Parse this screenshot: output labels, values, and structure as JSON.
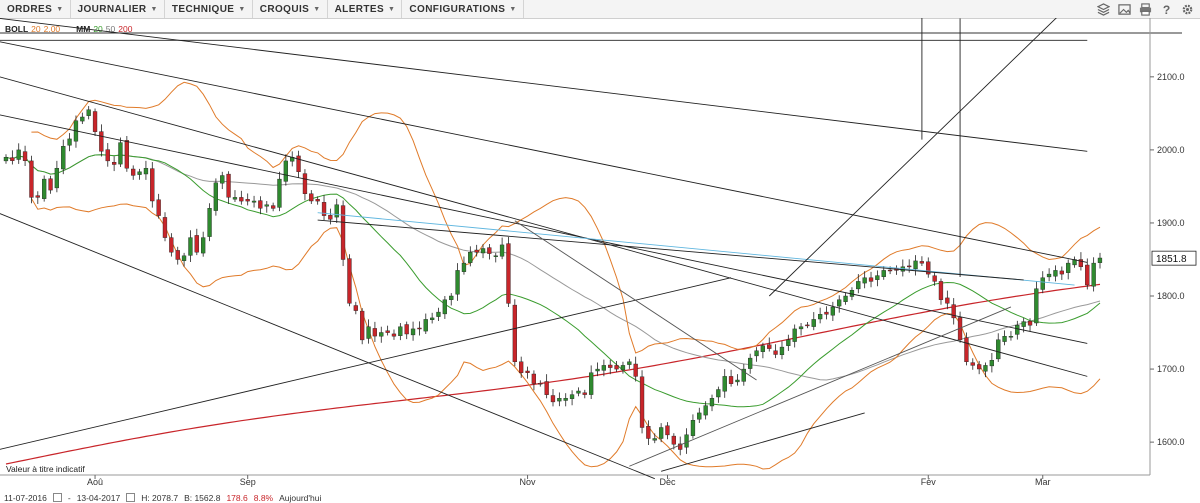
{
  "menu": [
    {
      "label": "ORDRES"
    },
    {
      "label": "JOURNALIER"
    },
    {
      "label": "TECHNIQUE"
    },
    {
      "label": "CROQUIS"
    },
    {
      "label": "ALERTES"
    },
    {
      "label": "CONFIGURATIONS"
    }
  ],
  "toolbar_icons": [
    "layers-icon",
    "image-icon",
    "print-icon",
    "help-icon",
    "settings-icon"
  ],
  "legend": {
    "boll_label": "BOLL",
    "boll_period": "20",
    "boll_dev": "2.00",
    "mm_label": "MM",
    "mm_1": "20",
    "mm_2": "50",
    "mm_3": "200"
  },
  "note": "Valeur à titre indicatif",
  "footer": {
    "from": "11-07-2016",
    "to": "13-04-2017",
    "high": "H: 2078.7",
    "low": "B: 1562.8",
    "change": "178.6",
    "change_pct": "8.8%",
    "today": "Aujourd'hui"
  },
  "colors": {
    "up": "#2f8a2f",
    "down": "#c8252a",
    "boll": "#e07b2a",
    "mm20": "#3a9c2e",
    "mm50": "#999999",
    "mm200": "#c8252a",
    "cyan": "#5fb6df"
  },
  "chart_data": {
    "type": "candlestick",
    "x_tick_labels": [
      "Aoû",
      "Sep",
      "Nov",
      "Déc",
      "Fév",
      "Mar"
    ],
    "y_ticks": [
      1600,
      1700,
      1800,
      1900,
      2000,
      2100
    ],
    "y_tick_labels": [
      "1600.0",
      "1700.0",
      "1800.0",
      "1900.0",
      "2000.0",
      "2100.0"
    ],
    "ylim": [
      1555,
      2160
    ],
    "last_price": 1851.8,
    "last_price_label": "1851.8",
    "closes": [
      1990,
      1985,
      2000,
      1985,
      1935,
      1935,
      1960,
      1945,
      1975,
      2005,
      2015,
      2040,
      2045,
      2055,
      2025,
      1998,
      1985,
      1980,
      2010,
      1975,
      1965,
      1970,
      1975,
      1930,
      1910,
      1880,
      1860,
      1850,
      1855,
      1880,
      1860,
      1880,
      1920,
      1955,
      1965,
      1935,
      1935,
      1930,
      1930,
      1930,
      1920,
      1925,
      1920,
      1960,
      1985,
      1990,
      1970,
      1940,
      1930,
      1930,
      1910,
      1905,
      1925,
      1850,
      1790,
      1780,
      1740,
      1758,
      1745,
      1750,
      1750,
      1745,
      1758,
      1748,
      1755,
      1755,
      1768,
      1770,
      1778,
      1795,
      1800,
      1835,
      1845,
      1860,
      1860,
      1865,
      1858,
      1855,
      1870,
      1790,
      1710,
      1695,
      1695,
      1680,
      1680,
      1665,
      1655,
      1660,
      1660,
      1665,
      1670,
      1665,
      1695,
      1700,
      1705,
      1702,
      1700,
      1705,
      1710,
      1690,
      1620,
      1605,
      1605,
      1620,
      1610,
      1597,
      1590,
      1610,
      1630,
      1640,
      1650,
      1660,
      1672,
      1690,
      1680,
      1685,
      1700,
      1715,
      1725,
      1732,
      1728,
      1720,
      1730,
      1740,
      1755,
      1758,
      1760,
      1768,
      1775,
      1775,
      1785,
      1795,
      1800,
      1808,
      1820,
      1825,
      1820,
      1828,
      1835,
      1835,
      1835,
      1840,
      1840,
      1848,
      1845,
      1830,
      1820,
      1795,
      1790,
      1770,
      1740,
      1710,
      1705,
      1700,
      1705,
      1712,
      1740,
      1745,
      1745,
      1760,
      1765,
      1760,
      1810,
      1825,
      1830,
      1835,
      1830,
      1845,
      1850,
      1840,
      1815,
      1845,
      1852
    ]
  }
}
